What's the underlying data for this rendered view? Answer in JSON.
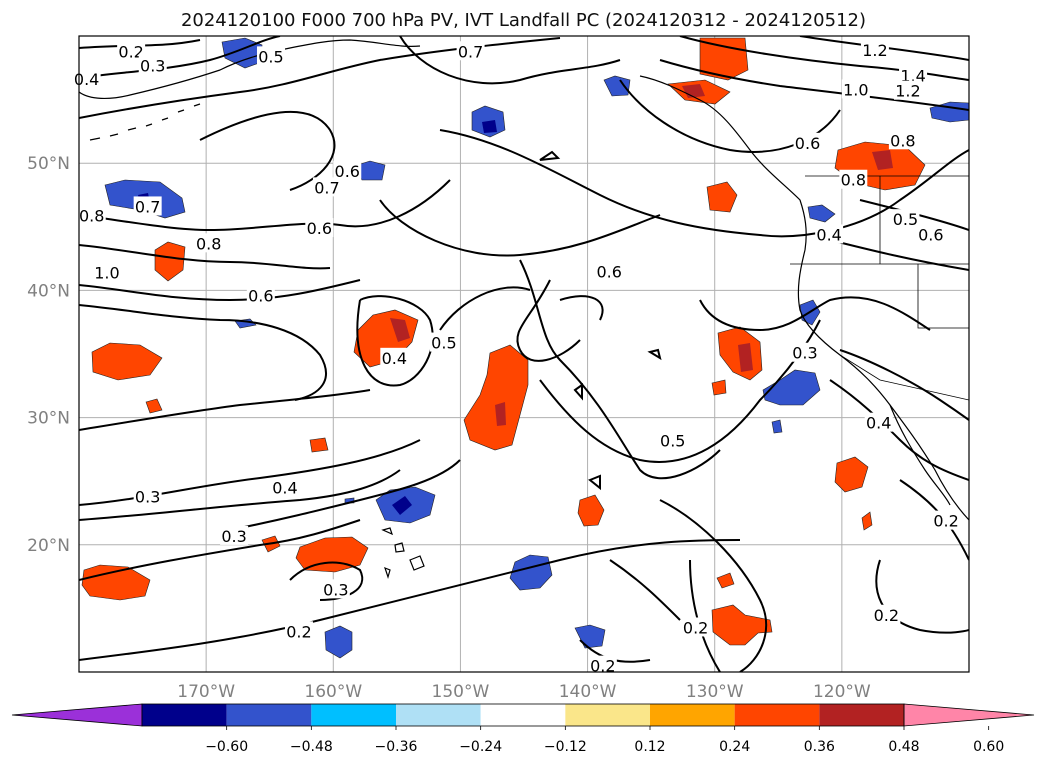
{
  "title": "2024120100 F000 700 hPa PV, IVT Landfall PC (2024120312 - 2024120512)",
  "map": {
    "projection": "equirectangular",
    "lon_range": [
      -180,
      -110
    ],
    "lat_range": [
      10,
      60
    ],
    "lon_ticks": [
      {
        "value": -170,
        "label": "170°W"
      },
      {
        "value": -160,
        "label": "160°W"
      },
      {
        "value": -150,
        "label": "150°W"
      },
      {
        "value": -140,
        "label": "140°W"
      },
      {
        "value": -130,
        "label": "130°W"
      },
      {
        "value": -120,
        "label": "120°W"
      }
    ],
    "lat_ticks": [
      {
        "value": 20,
        "label": "20°N"
      },
      {
        "value": 30,
        "label": "30°N"
      },
      {
        "value": 40,
        "label": "40°N"
      },
      {
        "value": 50,
        "label": "50°N"
      }
    ],
    "grid": true,
    "contour_labels": [
      {
        "text": "0.2",
        "lon": -175.9,
        "lat": 58.8
      },
      {
        "text": "0.3",
        "lon": -174.2,
        "lat": 57.7
      },
      {
        "text": "0.4",
        "lon": -179.4,
        "lat": 56.6
      },
      {
        "text": "0.5",
        "lon": -164.9,
        "lat": 58.4
      },
      {
        "text": "0.7",
        "lon": -149.2,
        "lat": 58.8
      },
      {
        "text": "1.2",
        "lon": -117.4,
        "lat": 58.9
      },
      {
        "text": "1.4",
        "lon": -114.4,
        "lat": 56.9
      },
      {
        "text": "1.0",
        "lon": -118.9,
        "lat": 55.8
      },
      {
        "text": "1.2",
        "lon": -114.8,
        "lat": 55.7
      },
      {
        "text": "0.8",
        "lon": -115.2,
        "lat": 51.8
      },
      {
        "text": "0.6",
        "lon": -122.7,
        "lat": 51.6
      },
      {
        "text": "0.8",
        "lon": -119.1,
        "lat": 48.7
      },
      {
        "text": "0.5",
        "lon": -115.0,
        "lat": 45.6
      },
      {
        "text": "0.6",
        "lon": -113.0,
        "lat": 44.4
      },
      {
        "text": "0.4",
        "lon": -121.0,
        "lat": 44.4
      },
      {
        "text": "0.7",
        "lon": -160.5,
        "lat": 48.1
      },
      {
        "text": "0.6",
        "lon": -158.9,
        "lat": 49.4
      },
      {
        "text": "0.7",
        "lon": -174.6,
        "lat": 46.6
      },
      {
        "text": "0.8",
        "lon": -179.0,
        "lat": 45.9
      },
      {
        "text": "1.0",
        "lon": -177.8,
        "lat": 41.4
      },
      {
        "text": "0.8",
        "lon": -169.8,
        "lat": 43.7
      },
      {
        "text": "0.6",
        "lon": -161.1,
        "lat": 44.9
      },
      {
        "text": "0.6",
        "lon": -165.7,
        "lat": 39.6
      },
      {
        "text": "0.6",
        "lon": -138.3,
        "lat": 41.5
      },
      {
        "text": "0.4",
        "lon": -155.2,
        "lat": 34.7
      },
      {
        "text": "0.5",
        "lon": -151.3,
        "lat": 35.9
      },
      {
        "text": "0.3",
        "lon": -122.9,
        "lat": 35.1
      },
      {
        "text": "0.4",
        "lon": -117.1,
        "lat": 29.6
      },
      {
        "text": "0.5",
        "lon": -133.3,
        "lat": 28.2
      },
      {
        "text": "0.4",
        "lon": -163.8,
        "lat": 24.5
      },
      {
        "text": "0.3",
        "lon": -174.6,
        "lat": 23.8
      },
      {
        "text": "0.3",
        "lon": -167.8,
        "lat": 20.7
      },
      {
        "text": "0.3",
        "lon": -159.8,
        "lat": 16.5
      },
      {
        "text": "0.2",
        "lon": -162.7,
        "lat": 13.2
      },
      {
        "text": "0.2",
        "lon": -131.5,
        "lat": 13.5
      },
      {
        "text": "0.2",
        "lon": -116.5,
        "lat": 14.5
      },
      {
        "text": "0.2",
        "lon": -111.8,
        "lat": 21.9
      },
      {
        "text": "0.2",
        "lon": -138.8,
        "lat": 10.5
      }
    ]
  },
  "colorbar": {
    "colors": [
      "#9b30d9",
      "#00008b",
      "#3353cc",
      "#00bfff",
      "#afe0f5",
      "#ffffff",
      "#fae68a",
      "#ffa500",
      "#ff4500",
      "#b22222",
      "#ff85a8"
    ],
    "extend": "both",
    "tick_labels": [
      "−0.60",
      "−0.48",
      "−0.36",
      "−0.24",
      "−0.12",
      "0.12",
      "0.24",
      "0.36",
      "0.48",
      "0.60"
    ]
  }
}
